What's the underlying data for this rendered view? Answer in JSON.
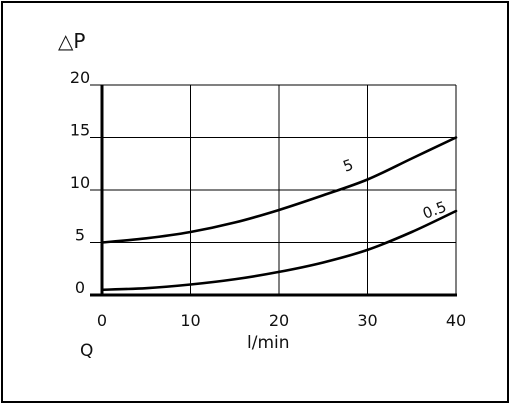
{
  "chart_data": {
    "type": "line",
    "title": "",
    "ylabel": "△P",
    "xlabel_left": "Q",
    "xlabel": "l/min",
    "xlim": [
      0,
      40
    ],
    "ylim": [
      0,
      20
    ],
    "x_ticks": [
      0,
      10,
      20,
      30,
      40
    ],
    "y_ticks": [
      0,
      5,
      10,
      15,
      20
    ],
    "x_tick_labels": [
      "0",
      "10",
      "20",
      "30",
      "40"
    ],
    "y_tick_labels": [
      "0",
      "5",
      "10",
      "15",
      "20"
    ],
    "grid": true,
    "series": [
      {
        "name": "5",
        "x": [
          0,
          5,
          10,
          15,
          20,
          25,
          30,
          35,
          40
        ],
        "values": [
          5.0,
          5.4,
          6.0,
          6.9,
          8.1,
          9.5,
          11.0,
          13.0,
          15.0
        ]
      },
      {
        "name": "0.5",
        "x": [
          0,
          5,
          10,
          15,
          20,
          25,
          30,
          35,
          40
        ],
        "values": [
          0.5,
          0.65,
          1.0,
          1.5,
          2.2,
          3.1,
          4.3,
          6.0,
          8.0
        ]
      }
    ],
    "colors": {
      "line": "#000000",
      "grid": "#000000"
    }
  }
}
